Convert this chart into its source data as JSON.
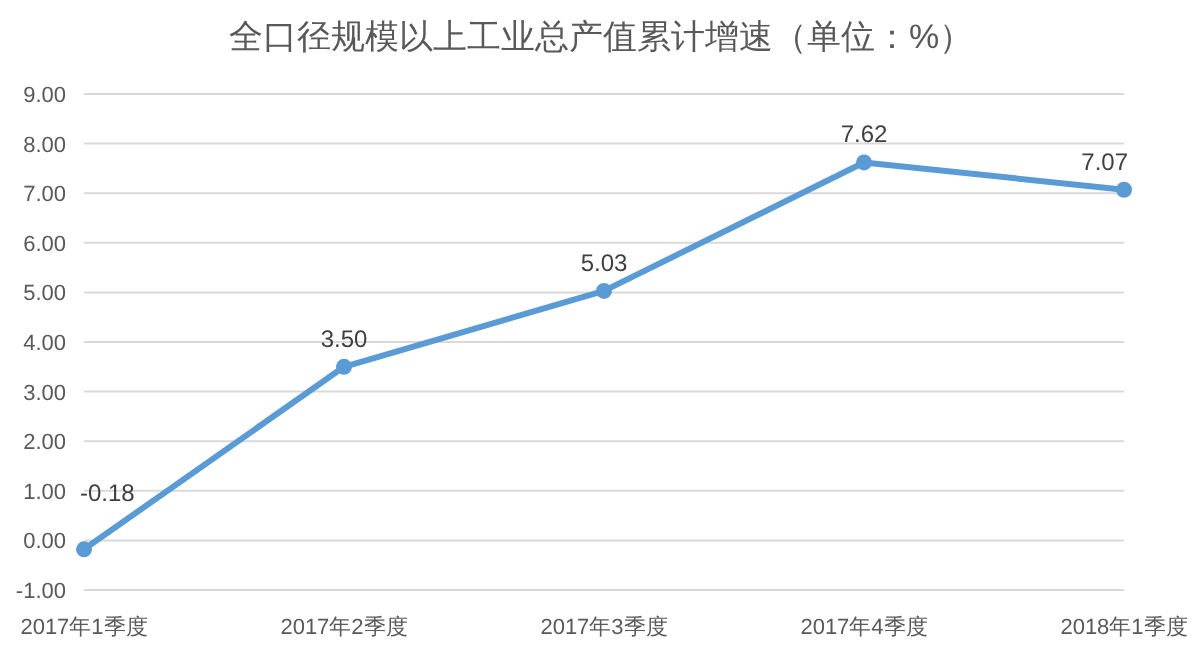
{
  "chart_data": {
    "type": "line",
    "title": "全口径规模以上工业总产值累计增速（单位：%）",
    "categories": [
      "2017年1季度",
      "2017年2季度",
      "2017年3季度",
      "2017年4季度",
      "2018年1季度"
    ],
    "series": [
      {
        "color": "#5b9bd5",
        "values": [
          -0.18,
          3.5,
          5.03,
          7.62,
          7.07
        ],
        "value_labels": [
          "-0.18",
          "3.50",
          "5.03",
          "7.62",
          "7.07"
        ]
      }
    ],
    "ylim": [
      -1,
      9
    ],
    "yticks": [
      {
        "value": -1,
        "label": "-1.00"
      },
      {
        "value": 0,
        "label": "0.00"
      },
      {
        "value": 1,
        "label": "1.00"
      },
      {
        "value": 2,
        "label": "2.00"
      },
      {
        "value": 3,
        "label": "3.00"
      },
      {
        "value": 4,
        "label": "4.00"
      },
      {
        "value": 5,
        "label": "5.00"
      },
      {
        "value": 6,
        "label": "6.00"
      },
      {
        "value": 7,
        "label": "7.00"
      },
      {
        "value": 8,
        "label": "8.00"
      },
      {
        "value": 9,
        "label": "9.00"
      }
    ],
    "grid": "y",
    "marker": "circle",
    "line_style": "solid"
  }
}
